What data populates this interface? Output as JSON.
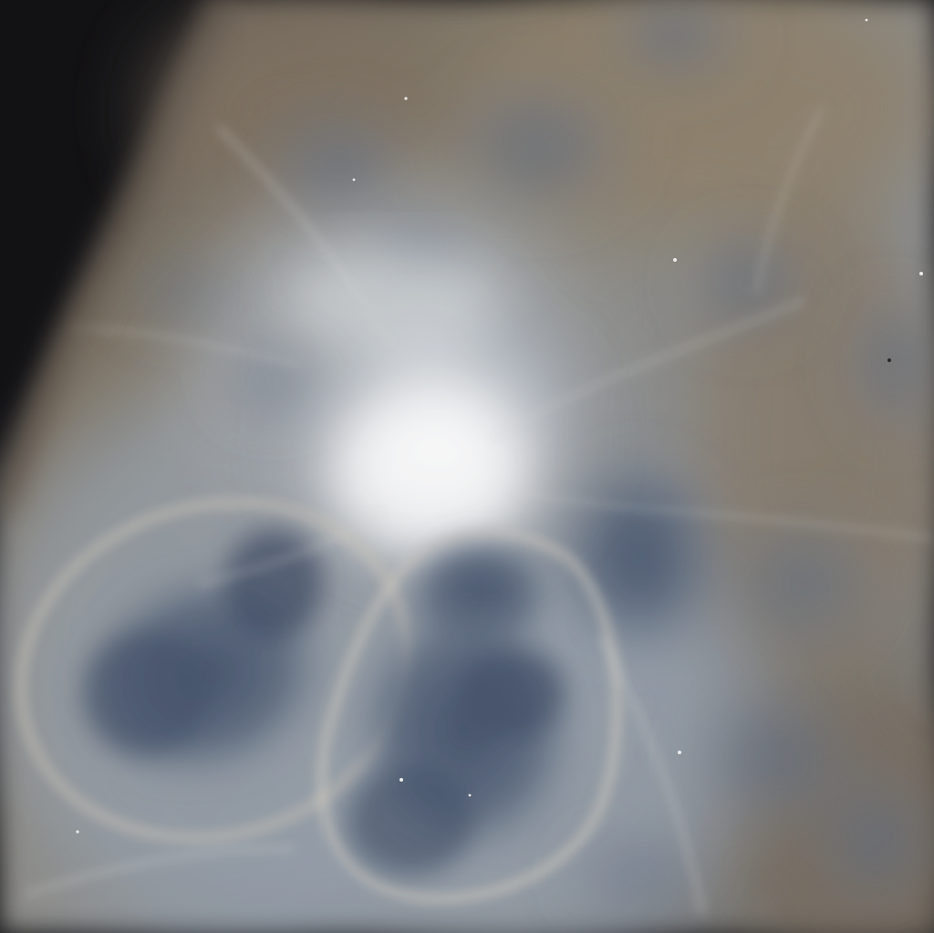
{
  "image": {
    "subject": "radiograph",
    "colors": {
      "background_dark": "#0b0b0e",
      "tissue_tan": "#8a7a64",
      "tissue_gray": "#8c97a3",
      "cavity_blue": "#4a5a72",
      "bright_core": "#f4f6f8"
    }
  }
}
